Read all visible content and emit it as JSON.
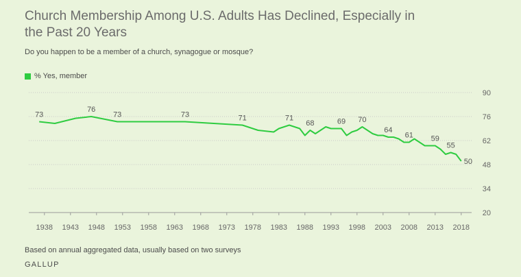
{
  "header": {
    "title": "Church Membership Among U.S. Adults Has Declined, Especially in the Past 20 Years",
    "subtitle": "Do you happen to be a member of a church, synagogue or mosque?"
  },
  "footer": {
    "note": "Based on annual aggregated data, usually based on two surveys",
    "source": "GALLUP"
  },
  "chart_data": {
    "type": "line",
    "title": "Church Membership Among U.S. Adults Has Declined, Especially in the Past 20 Years",
    "subtitle": "Do you happen to be a member of a church, synagogue or mosque?",
    "xlabel": "",
    "ylabel": "",
    "xlim": [
      1935,
      2020
    ],
    "ylim": [
      20,
      90
    ],
    "yticks": [
      20,
      34,
      48,
      62,
      76,
      90
    ],
    "xticks": [
      1938,
      1943,
      1948,
      1953,
      1958,
      1963,
      1968,
      1973,
      1978,
      1983,
      1988,
      1993,
      1998,
      2003,
      2008,
      2013,
      2018
    ],
    "grid": "horizontal dotted",
    "legend": "top-left",
    "series": [
      {
        "name": "% Yes, member",
        "color": "#2ecc40",
        "points": [
          {
            "x": 1937,
            "y": 73
          },
          {
            "x": 1940,
            "y": 72
          },
          {
            "x": 1944,
            "y": 75
          },
          {
            "x": 1947,
            "y": 76
          },
          {
            "x": 1952,
            "y": 73
          },
          {
            "x": 1965,
            "y": 73
          },
          {
            "x": 1976,
            "y": 71
          },
          {
            "x": 1979,
            "y": 68
          },
          {
            "x": 1982,
            "y": 67
          },
          {
            "x": 1983,
            "y": 69
          },
          {
            "x": 1985,
            "y": 71
          },
          {
            "x": 1987,
            "y": 69
          },
          {
            "x": 1988,
            "y": 65
          },
          {
            "x": 1989,
            "y": 68
          },
          {
            "x": 1990,
            "y": 66
          },
          {
            "x": 1992,
            "y": 70
          },
          {
            "x": 1993,
            "y": 69
          },
          {
            "x": 1995,
            "y": 69
          },
          {
            "x": 1996,
            "y": 65
          },
          {
            "x": 1997,
            "y": 67
          },
          {
            "x": 1998,
            "y": 68
          },
          {
            "x": 1999,
            "y": 70
          },
          {
            "x": 2000,
            "y": 68
          },
          {
            "x": 2001,
            "y": 66
          },
          {
            "x": 2002,
            "y": 65
          },
          {
            "x": 2003,
            "y": 65
          },
          {
            "x": 2004,
            "y": 64
          },
          {
            "x": 2005,
            "y": 64
          },
          {
            "x": 2006,
            "y": 63
          },
          {
            "x": 2007,
            "y": 61
          },
          {
            "x": 2008,
            "y": 61
          },
          {
            "x": 2009,
            "y": 63
          },
          {
            "x": 2010,
            "y": 61
          },
          {
            "x": 2011,
            "y": 59
          },
          {
            "x": 2013,
            "y": 59
          },
          {
            "x": 2014,
            "y": 57
          },
          {
            "x": 2015,
            "y": 54
          },
          {
            "x": 2016,
            "y": 55
          },
          {
            "x": 2017,
            "y": 54
          },
          {
            "x": 2018,
            "y": 50
          }
        ]
      }
    ],
    "data_labels": [
      {
        "x": 1937,
        "y": 73,
        "text": "73"
      },
      {
        "x": 1947,
        "y": 76,
        "text": "76"
      },
      {
        "x": 1952,
        "y": 73,
        "text": "73"
      },
      {
        "x": 1965,
        "y": 73,
        "text": "73"
      },
      {
        "x": 1976,
        "y": 71,
        "text": "71"
      },
      {
        "x": 1985,
        "y": 71,
        "text": "71"
      },
      {
        "x": 1989,
        "y": 68,
        "text": "68"
      },
      {
        "x": 1995,
        "y": 69,
        "text": "69"
      },
      {
        "x": 1999,
        "y": 70,
        "text": "70"
      },
      {
        "x": 2004,
        "y": 64,
        "text": "64"
      },
      {
        "x": 2008,
        "y": 61,
        "text": "61"
      },
      {
        "x": 2013,
        "y": 59,
        "text": "59"
      },
      {
        "x": 2016,
        "y": 55,
        "text": "55"
      },
      {
        "x": 2018,
        "y": 50,
        "text": "50"
      }
    ]
  }
}
